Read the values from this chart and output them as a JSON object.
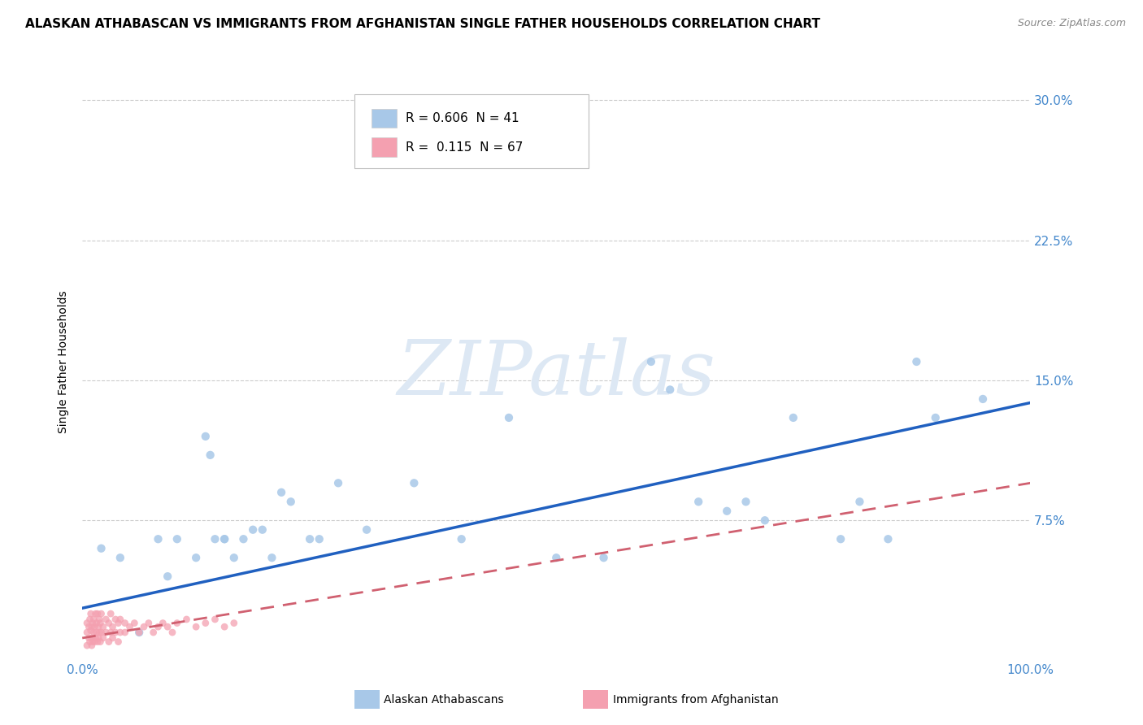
{
  "title": "ALASKAN ATHABASCAN VS IMMIGRANTS FROM AFGHANISTAN SINGLE FATHER HOUSEHOLDS CORRELATION CHART",
  "source": "Source: ZipAtlas.com",
  "ylabel": "Single Father Households",
  "legend_label_1": "Alaskan Athabascans",
  "legend_label_2": "Immigrants from Afghanistan",
  "color_blue": "#a8c8e8",
  "color_pink": "#f4a0b0",
  "color_blue_line": "#2060c0",
  "color_pink_line": "#d06070",
  "watermark_text": "ZIPatlas",
  "xlim": [
    0,
    1
  ],
  "ylim": [
    0,
    0.32
  ],
  "yticks": [
    0.075,
    0.15,
    0.225,
    0.3
  ],
  "ytick_labels": [
    "7.5%",
    "15.0%",
    "22.5%",
    "30.0%"
  ],
  "blue_line_x": [
    0.0,
    1.0
  ],
  "blue_line_y": [
    0.028,
    0.138
  ],
  "pink_line_x": [
    0.0,
    1.0
  ],
  "pink_line_y": [
    0.012,
    0.095
  ],
  "blue_scatter_x": [
    0.02,
    0.04,
    0.06,
    0.08,
    0.09,
    0.1,
    0.12,
    0.13,
    0.135,
    0.14,
    0.15,
    0.15,
    0.16,
    0.17,
    0.18,
    0.19,
    0.2,
    0.21,
    0.22,
    0.24,
    0.25,
    0.27,
    0.3,
    0.35,
    0.4,
    0.45,
    0.5,
    0.55,
    0.6,
    0.62,
    0.65,
    0.68,
    0.7,
    0.72,
    0.75,
    0.8,
    0.82,
    0.85,
    0.88,
    0.9,
    0.95
  ],
  "blue_scatter_y": [
    0.06,
    0.055,
    0.015,
    0.065,
    0.045,
    0.065,
    0.055,
    0.12,
    0.11,
    0.065,
    0.065,
    0.065,
    0.055,
    0.065,
    0.07,
    0.07,
    0.055,
    0.09,
    0.085,
    0.065,
    0.065,
    0.095,
    0.07,
    0.095,
    0.065,
    0.13,
    0.055,
    0.055,
    0.16,
    0.145,
    0.085,
    0.08,
    0.085,
    0.075,
    0.13,
    0.065,
    0.085,
    0.065,
    0.16,
    0.13,
    0.14
  ],
  "pink_scatter_x": [
    0.005,
    0.005,
    0.005,
    0.007,
    0.007,
    0.008,
    0.008,
    0.009,
    0.009,
    0.01,
    0.01,
    0.01,
    0.011,
    0.011,
    0.012,
    0.012,
    0.013,
    0.013,
    0.014,
    0.014,
    0.015,
    0.015,
    0.016,
    0.016,
    0.017,
    0.017,
    0.018,
    0.018,
    0.019,
    0.019,
    0.02,
    0.02,
    0.022,
    0.022,
    0.025,
    0.025,
    0.028,
    0.028,
    0.03,
    0.03,
    0.032,
    0.032,
    0.035,
    0.035,
    0.038,
    0.038,
    0.04,
    0.04,
    0.045,
    0.045,
    0.05,
    0.055,
    0.06,
    0.065,
    0.07,
    0.075,
    0.08,
    0.085,
    0.09,
    0.095,
    0.1,
    0.11,
    0.12,
    0.13,
    0.14,
    0.15,
    0.16
  ],
  "pink_scatter_y": [
    0.015,
    0.02,
    0.008,
    0.018,
    0.012,
    0.022,
    0.01,
    0.016,
    0.025,
    0.012,
    0.018,
    0.008,
    0.02,
    0.01,
    0.015,
    0.022,
    0.01,
    0.018,
    0.012,
    0.025,
    0.015,
    0.02,
    0.01,
    0.025,
    0.012,
    0.018,
    0.015,
    0.022,
    0.01,
    0.02,
    0.015,
    0.025,
    0.012,
    0.018,
    0.015,
    0.022,
    0.01,
    0.02,
    0.015,
    0.025,
    0.012,
    0.018,
    0.015,
    0.022,
    0.01,
    0.02,
    0.015,
    0.022,
    0.015,
    0.02,
    0.018,
    0.02,
    0.015,
    0.018,
    0.02,
    0.015,
    0.018,
    0.02,
    0.018,
    0.015,
    0.02,
    0.022,
    0.018,
    0.02,
    0.022,
    0.018,
    0.02
  ],
  "background_color": "#ffffff",
  "grid_color": "#cccccc",
  "title_fontsize": 11,
  "tick_fontsize": 11,
  "tick_color": "#4488cc",
  "watermark_color": "#dde8f4",
  "scatter_size_blue": 55,
  "scatter_size_pink": 40
}
